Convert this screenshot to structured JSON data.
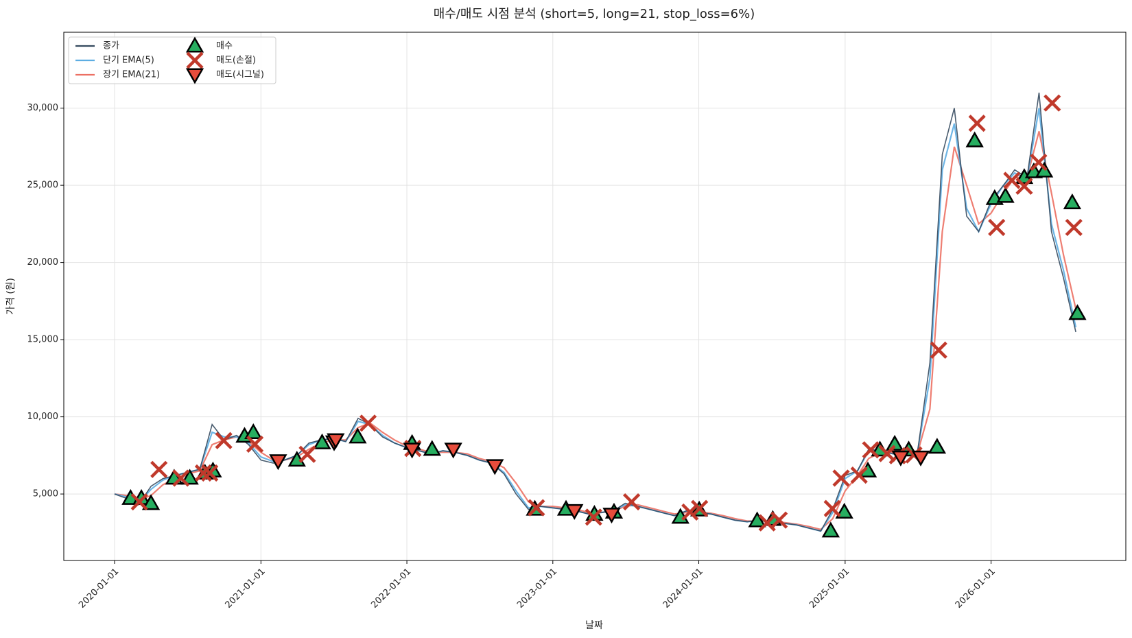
{
  "chart_data": {
    "type": "line",
    "title": "매수/매도 시점 분석 (short=5, long=21, stop_loss=6%)",
    "xlabel": "날짜",
    "ylabel": "가격 (원)",
    "grid": true,
    "legend": "upper left",
    "xlim": [
      "2019-08-27",
      "2026-12-04"
    ],
    "xticks": [
      "2020-01-01",
      "2021-01-01",
      "2022-01-01",
      "2023-01-01",
      "2024-01-01",
      "2025-01-01",
      "2026-01-01"
    ],
    "ylim": [
      693,
      34916
    ],
    "yticks": [
      {
        "value": 5000,
        "label": "5,000"
      },
      {
        "value": 10000,
        "label": "10,000"
      },
      {
        "value": 15000,
        "label": "15,000"
      },
      {
        "value": 20000,
        "label": "20,000"
      },
      {
        "value": 25000,
        "label": "25,000"
      },
      {
        "value": 30000,
        "label": "30,000"
      }
    ],
    "x": [
      "2020-01-01",
      "2020-02-01",
      "2020-03-01",
      "2020-04-01",
      "2020-05-01",
      "2020-06-01",
      "2020-07-01",
      "2020-08-01",
      "2020-09-01",
      "2020-10-01",
      "2020-11-01",
      "2020-12-01",
      "2021-01-01",
      "2021-02-01",
      "2021-03-01",
      "2021-04-01",
      "2021-05-01",
      "2021-06-01",
      "2021-07-01",
      "2021-08-01",
      "2021-09-01",
      "2021-10-01",
      "2021-11-01",
      "2021-12-01",
      "2022-01-01",
      "2022-02-01",
      "2022-03-01",
      "2022-04-01",
      "2022-05-01",
      "2022-06-01",
      "2022-07-01",
      "2022-08-01",
      "2022-09-01",
      "2022-10-01",
      "2022-11-01",
      "2022-12-01",
      "2023-01-01",
      "2023-02-01",
      "2023-03-01",
      "2023-04-01",
      "2023-05-01",
      "2023-06-01",
      "2023-07-01",
      "2023-08-01",
      "2023-09-01",
      "2023-10-01",
      "2023-11-01",
      "2023-12-01",
      "2024-01-01",
      "2024-02-01",
      "2024-03-01",
      "2024-04-01",
      "2024-05-01",
      "2024-06-01",
      "2024-07-01",
      "2024-08-01",
      "2024-09-01",
      "2024-10-01",
      "2024-11-01",
      "2024-12-01",
      "2025-01-01",
      "2025-02-01",
      "2025-03-01",
      "2025-04-01",
      "2025-05-01",
      "2025-06-01",
      "2025-07-01",
      "2025-08-01",
      "2025-09-01",
      "2025-10-01",
      "2025-11-01",
      "2025-12-01",
      "2026-01-01",
      "2026-02-01",
      "2026-03-01",
      "2026-04-01",
      "2026-05-01",
      "2026-06-01",
      "2026-07-01",
      "2026-08-01"
    ],
    "series": [
      {
        "name": "장기 EMA(21)",
        "type": "line",
        "color": "#ec7063",
        "values": [
          5000,
          4900,
          4600,
          4900,
          5600,
          6000,
          6300,
          6500,
          8200,
          8500,
          8700,
          8400,
          7700,
          7200,
          7200,
          7400,
          7900,
          8300,
          8500,
          8500,
          9300,
          9600,
          9000,
          8500,
          8100,
          7900,
          7700,
          7700,
          7700,
          7600,
          7300,
          7100,
          6700,
          5700,
          4500,
          4200,
          4200,
          4100,
          4000,
          3800,
          3800,
          3900,
          4200,
          4300,
          4100,
          3900,
          3700,
          3800,
          3850,
          3750,
          3600,
          3400,
          3250,
          3250,
          3250,
          3150,
          3050,
          2900,
          2700,
          3400,
          5200,
          6200,
          7300,
          7700,
          7700,
          7600,
          7650,
          10500,
          22000,
          27500,
          25000,
          22500,
          23200,
          24500,
          25500,
          25500,
          28500,
          24500,
          20500,
          17000
        ]
      },
      {
        "name": "단기 EMA(5)",
        "type": "line",
        "color": "#5dade2",
        "values": [
          5000,
          4800,
          4400,
          5300,
          5900,
          6200,
          6400,
          6600,
          9000,
          8700,
          8700,
          8300,
          7400,
          7100,
          7200,
          7500,
          8200,
          8500,
          8600,
          8400,
          9700,
          9500,
          8800,
          8300,
          8000,
          7800,
          7600,
          7800,
          7700,
          7500,
          7200,
          7000,
          6400,
          5200,
          4100,
          4200,
          4100,
          4000,
          3900,
          3700,
          3800,
          3900,
          4300,
          4200,
          4000,
          3800,
          3600,
          3900,
          3800,
          3700,
          3500,
          3300,
          3200,
          3300,
          3200,
          3100,
          3000,
          2800,
          2600,
          3800,
          6000,
          6500,
          7800,
          7800,
          7600,
          7500,
          7700,
          12500,
          26000,
          29000,
          23500,
          22000,
          23800,
          25000,
          25800,
          25400,
          30000,
          22500,
          19500,
          15800
        ]
      },
      {
        "name": "종가",
        "type": "line",
        "color": "#34495e",
        "values": [
          5000,
          4700,
          4300,
          5500,
          6000,
          6200,
          6400,
          6600,
          9500,
          8500,
          8800,
          8200,
          7200,
          7000,
          7200,
          7500,
          8300,
          8500,
          8600,
          8400,
          9900,
          9500,
          8700,
          8300,
          8000,
          7800,
          7600,
          7800,
          7700,
          7500,
          7200,
          7000,
          6300,
          5000,
          4000,
          4200,
          4100,
          4000,
          3900,
          3700,
          3800,
          3900,
          4400,
          4200,
          4000,
          3800,
          3600,
          3900,
          3800,
          3700,
          3500,
          3300,
          3200,
          3300,
          3200,
          3100,
          3000,
          2800,
          2600,
          4000,
          6200,
          6500,
          7900,
          7800,
          7600,
          7500,
          7700,
          13500,
          27000,
          30000,
          23000,
          22000,
          24000,
          25000,
          26000,
          25500,
          31000,
          22000,
          19000,
          15500
        ]
      },
      {
        "name": "매수",
        "type": "scatter",
        "marker": "triangle-up",
        "color": "#27ae60",
        "x": [
          "2020-02-10",
          "2020-03-08",
          "2020-04-01",
          "2020-05-29",
          "2020-07-07",
          "2020-08-14",
          "2020-09-03",
          "2020-11-21",
          "2020-12-13",
          "2021-04-01",
          "2021-06-03",
          "2021-08-31",
          "2022-01-14",
          "2022-03-05",
          "2022-11-17",
          "2023-02-03",
          "2023-04-15",
          "2023-06-03",
          "2023-11-16",
          "2024-01-02",
          "2024-05-26",
          "2024-07-04",
          "2024-11-26",
          "2024-12-30",
          "2025-02-27",
          "2025-03-29",
          "2025-05-05",
          "2025-06-09",
          "2025-08-19",
          "2025-11-21",
          "2026-01-10",
          "2026-02-06",
          "2026-03-25",
          "2026-04-18",
          "2026-05-14",
          "2026-07-23",
          "2026-08-05"
        ],
        "values": [
          4720,
          4720,
          4390,
          6030,
          6030,
          6360,
          6500,
          8750,
          8980,
          7200,
          8320,
          8700,
          8280,
          7900,
          4020,
          4020,
          3690,
          3830,
          3500,
          3970,
          3270,
          3360,
          2610,
          3830,
          6500,
          7860,
          8230,
          7860,
          8040,
          27890,
          24150,
          24290,
          25510,
          25880,
          25930,
          23870,
          16700
        ]
      },
      {
        "name": "매도(손절)",
        "type": "scatter",
        "marker": "x",
        "color": "#c0392b",
        "x": [
          "2020-03-03",
          "2020-04-21",
          "2020-06-15",
          "2020-08-10",
          "2020-08-26",
          "2020-09-30",
          "2020-12-17",
          "2021-04-27",
          "2021-09-26",
          "2022-01-16",
          "2022-11-21",
          "2023-04-13",
          "2023-07-17",
          "2023-12-10",
          "2024-01-03",
          "2024-06-20",
          "2024-07-20",
          "2024-11-30",
          "2024-12-22",
          "2025-02-05",
          "2025-03-06",
          "2025-04-16",
          "2025-05-12",
          "2025-06-22",
          "2025-08-23",
          "2025-11-27",
          "2026-01-15",
          "2026-02-22",
          "2026-03-25",
          "2026-04-30",
          "2026-06-03",
          "2026-07-27"
        ],
        "values": [
          4490,
          6590,
          6030,
          6360,
          6360,
          8460,
          8230,
          7570,
          9590,
          7950,
          4110,
          3500,
          4490,
          3830,
          4060,
          3130,
          3310,
          4060,
          6030,
          6220,
          7860,
          7620,
          7480,
          7530,
          14320,
          29020,
          22270,
          25320,
          24940,
          26490,
          30330,
          22270
        ]
      },
      {
        "name": "매도(시그널)",
        "type": "scatter",
        "marker": "triangle-down",
        "color": "#e74c3c",
        "x": [
          "2021-02-13",
          "2021-07-03",
          "2021-07-07",
          "2022-01-14",
          "2022-04-27",
          "2022-08-09",
          "2023-02-24",
          "2023-05-28",
          "2025-05-20",
          "2025-07-09"
        ],
        "values": [
          7150,
          8370,
          8510,
          7900,
          7900,
          6830,
          3920,
          3690,
          7390,
          7390
        ]
      }
    ]
  }
}
